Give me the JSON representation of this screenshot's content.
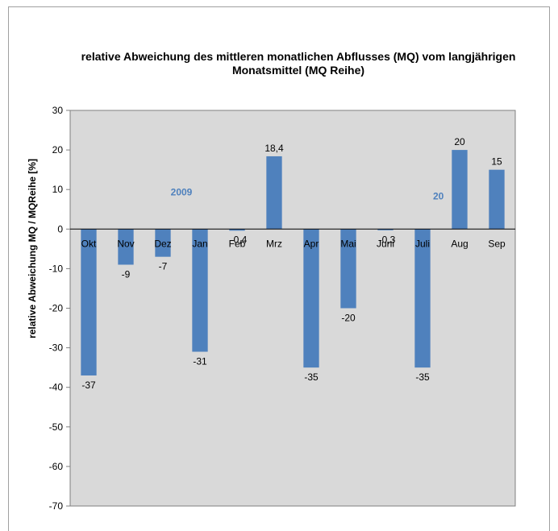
{
  "chart_data": {
    "type": "bar",
    "title": "relative Abweichung des mittleren monatlichen Abflusses (MQ) vom langjährigen Monatsmittel (MQ Reihe)",
    "ylabel": "relative Abweichung MQ / MQReihe [%]",
    "xlabel": "",
    "ylim": [
      -70,
      30
    ],
    "yticks": [
      30,
      20,
      10,
      0,
      -10,
      -20,
      -30,
      -40,
      -50,
      -60,
      -70
    ],
    "grid": false,
    "categories": [
      "Okt",
      "Nov",
      "Dez",
      "Jan",
      "Feb",
      "Mrz",
      "Apr",
      "Mai",
      "Juni",
      "Juli",
      "Aug",
      "Sep"
    ],
    "values": [
      -37,
      -9,
      -7,
      -31,
      -0.4,
      18.4,
      -35,
      -20,
      -0.3,
      -35,
      20,
      15
    ],
    "data_labels": [
      "-37",
      "-9",
      "-7",
      "-31",
      "-0,4",
      "18,4",
      "-35",
      "-20",
      "-0,3",
      "-35",
      "20",
      "15"
    ],
    "annotations": [
      "2009",
      "20"
    ],
    "colors": {
      "bar": "#4f81bd",
      "plot_bg": "#d9d9d9",
      "annotation": "#4f81bd"
    }
  }
}
